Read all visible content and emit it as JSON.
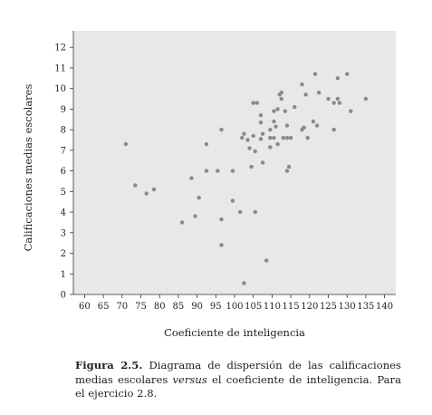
{
  "chart_data": {
    "type": "scatter",
    "title": "",
    "xlabel": "Coeficiente de inteligencia",
    "ylabel": "Calificaciones medias escolares",
    "xlim": [
      57,
      143
    ],
    "ylim": [
      0,
      12.8
    ],
    "x_ticks": [
      60,
      65,
      70,
      75,
      80,
      85,
      90,
      95,
      100,
      105,
      110,
      115,
      120,
      125,
      130,
      135,
      140
    ],
    "y_ticks": [
      0,
      1,
      2,
      3,
      4,
      5,
      6,
      7,
      8,
      9,
      10,
      11,
      12
    ],
    "grid": false,
    "point_color": "#8a8a8a",
    "background_color": "#e8e8e8",
    "points": [
      [
        71,
        7.3
      ],
      [
        73.5,
        5.3
      ],
      [
        76.5,
        4.9
      ],
      [
        78.5,
        5.1
      ],
      [
        86,
        3.5
      ],
      [
        88.5,
        5.65
      ],
      [
        89.5,
        3.8
      ],
      [
        90.5,
        4.7
      ],
      [
        92.5,
        7.3
      ],
      [
        92.5,
        6.0
      ],
      [
        95.5,
        6.0
      ],
      [
        96.5,
        8.0
      ],
      [
        96.5,
        3.65
      ],
      [
        96.5,
        2.4
      ],
      [
        99.5,
        4.55
      ],
      [
        99.5,
        6.0
      ],
      [
        101.5,
        4.0
      ],
      [
        102,
        7.6
      ],
      [
        102.5,
        7.8
      ],
      [
        102.5,
        0.55
      ],
      [
        103.5,
        7.5
      ],
      [
        104,
        7.1
      ],
      [
        104.5,
        6.2
      ],
      [
        105,
        9.3
      ],
      [
        105,
        7.7
      ],
      [
        105.5,
        6.95
      ],
      [
        105.5,
        4.0
      ],
      [
        106,
        9.3
      ],
      [
        107,
        8.7
      ],
      [
        107,
        8.35
      ],
      [
        107,
        7.55
      ],
      [
        107.5,
        7.8
      ],
      [
        107.5,
        6.4
      ],
      [
        108.5,
        1.65
      ],
      [
        109.5,
        8.0
      ],
      [
        109.5,
        7.6
      ],
      [
        109.5,
        7.15
      ],
      [
        110.5,
        8.4
      ],
      [
        110.5,
        8.9
      ],
      [
        110.5,
        7.6
      ],
      [
        111,
        8.15
      ],
      [
        111.5,
        9.0
      ],
      [
        111.5,
        7.3
      ],
      [
        112,
        9.7
      ],
      [
        112.5,
        9.5
      ],
      [
        112.5,
        9.8
      ],
      [
        113,
        7.6
      ],
      [
        113.5,
        8.9
      ],
      [
        114,
        8.2
      ],
      [
        114,
        7.6
      ],
      [
        114,
        6.0
      ],
      [
        114.5,
        6.2
      ],
      [
        115,
        7.6
      ],
      [
        116,
        9.1
      ],
      [
        118,
        10.2
      ],
      [
        118,
        8.0
      ],
      [
        118.5,
        8.1
      ],
      [
        119,
        9.7
      ],
      [
        119.5,
        7.6
      ],
      [
        121,
        8.4
      ],
      [
        121.5,
        10.7
      ],
      [
        122,
        8.2
      ],
      [
        122.5,
        9.8
      ],
      [
        125,
        9.5
      ],
      [
        126.5,
        8.0
      ],
      [
        126.5,
        9.3
      ],
      [
        127.5,
        10.5
      ],
      [
        127.5,
        9.5
      ],
      [
        128,
        9.3
      ],
      [
        130,
        10.7
      ],
      [
        131,
        8.9
      ],
      [
        135,
        9.5
      ]
    ]
  },
  "caption": {
    "label": "Figura 2.5.",
    "text_1": " Diagrama de dispersión de las calificaciones medias escolares ",
    "text_italic": "versus",
    "text_2": " el coeficiente de inteligencia. Para el ejercicio 2.8."
  }
}
